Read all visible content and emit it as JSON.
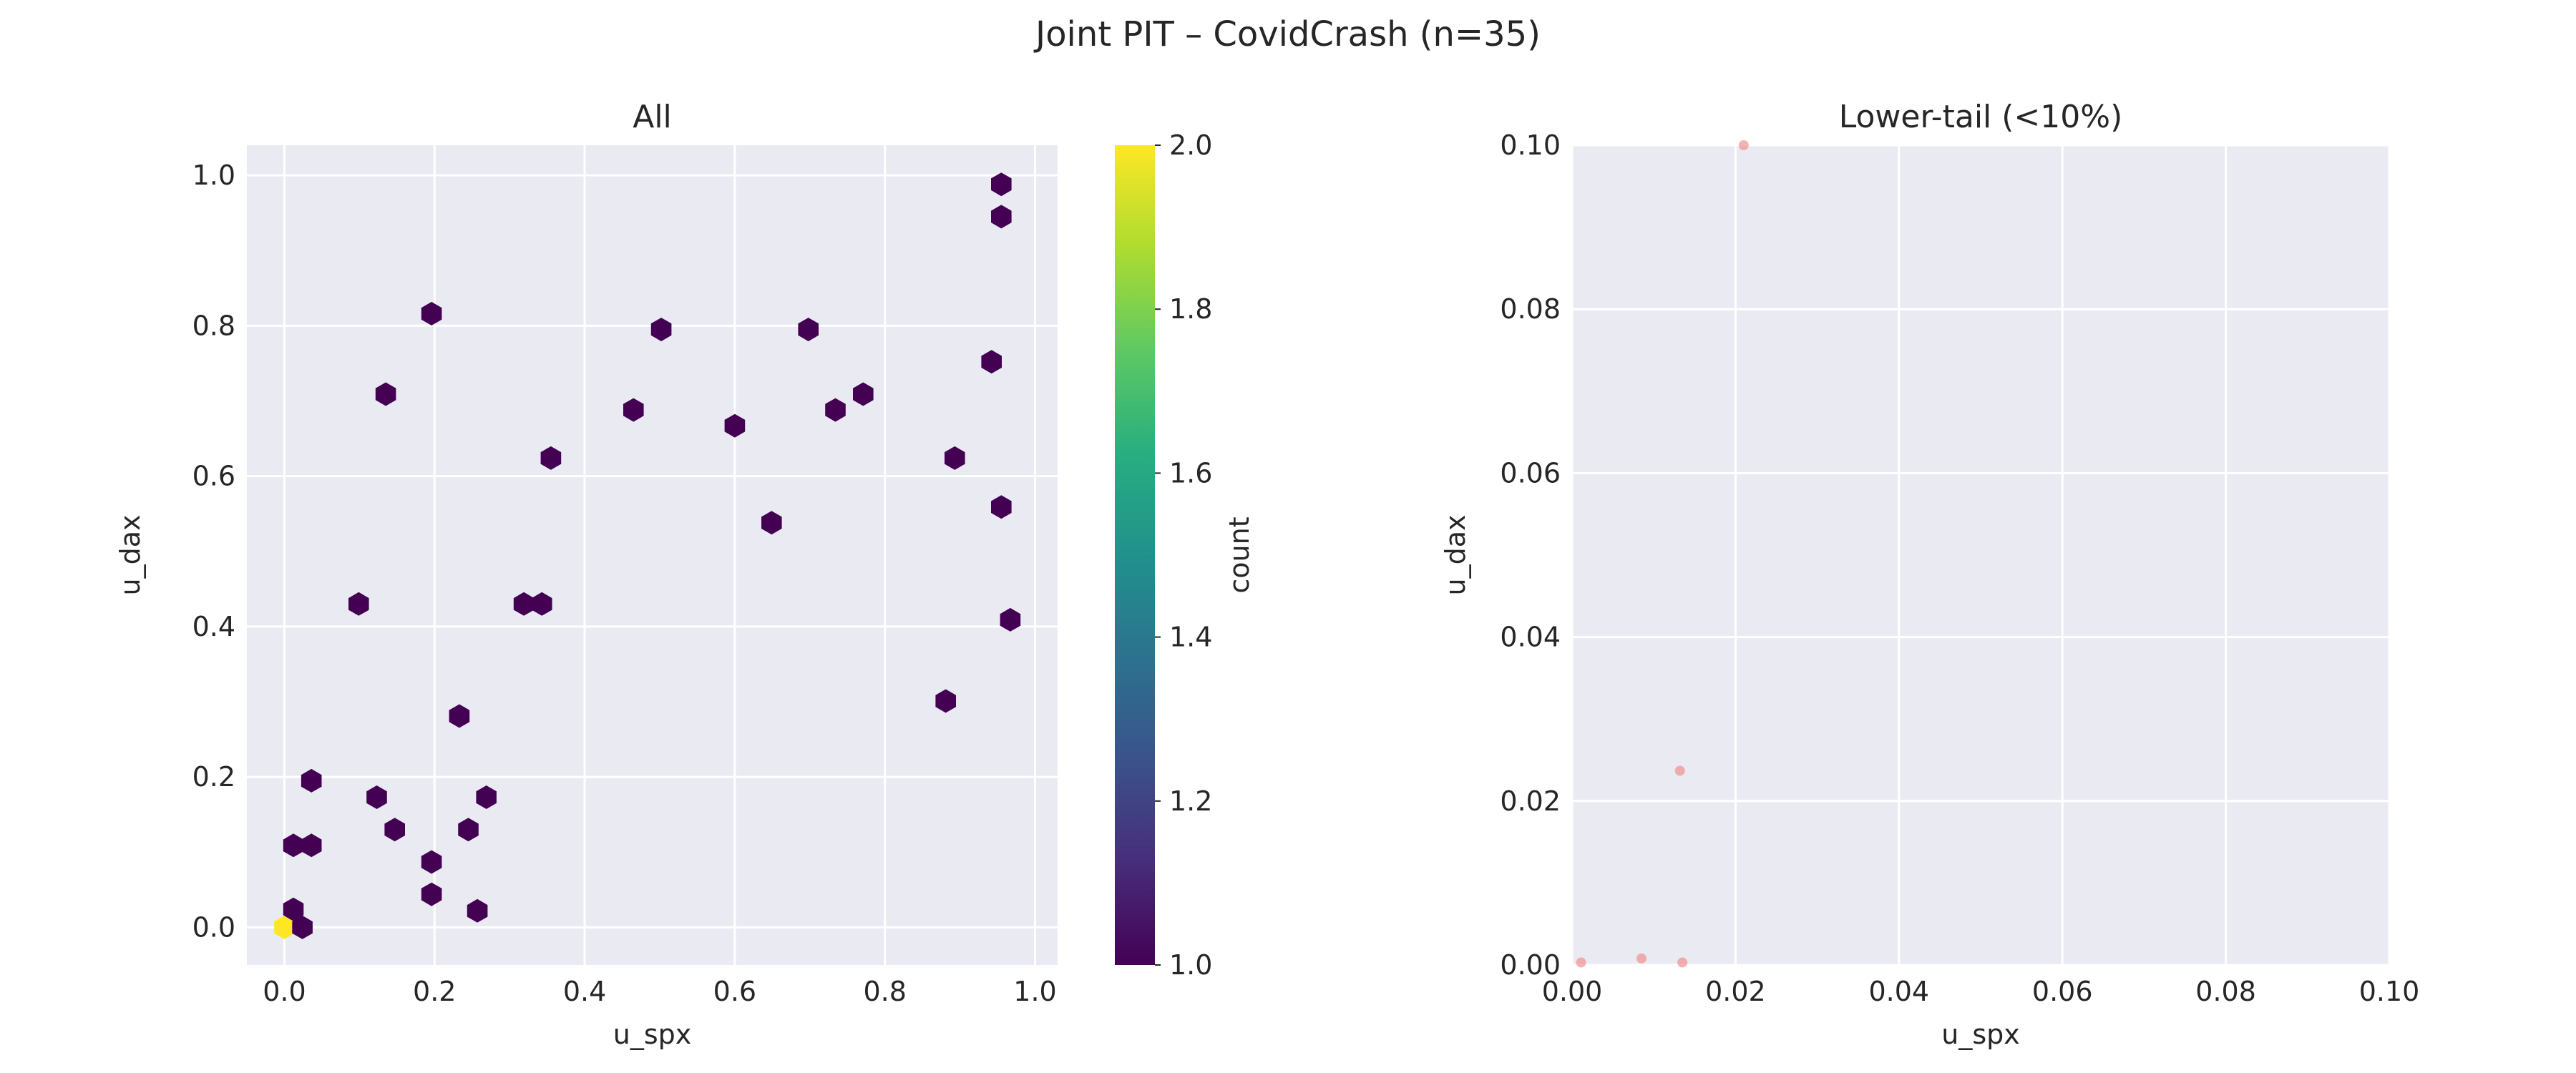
{
  "figure": {
    "title": "Joint PIT – CovidCrash (n=35)"
  },
  "colors": {
    "axes_bg": "#eaeaf2",
    "grid": "#ffffff",
    "text": "#262626",
    "hex_low": "#440154",
    "hex_high": "#fde725",
    "tail_point": "#f08080"
  },
  "chart_data": [
    {
      "type": "hexbin",
      "title": "All",
      "xlabel": "u_spx",
      "ylabel": "u_dax",
      "xlim": [
        -0.05,
        1.03
      ],
      "ylim": [
        -0.05,
        1.04
      ],
      "xticks": [
        "0.0",
        "0.2",
        "0.4",
        "0.6",
        "0.8",
        "1.0"
      ],
      "yticks": [
        "0.0",
        "0.2",
        "0.4",
        "0.6",
        "0.8",
        "1.0"
      ],
      "grid": true,
      "colorbar": {
        "label": "count",
        "range": [
          1.0,
          2.0
        ],
        "ticks": [
          "1.0",
          "1.2",
          "1.4",
          "1.6",
          "1.8",
          "2.0"
        ],
        "colormap": "viridis"
      },
      "bins": [
        {
          "x": 0.0,
          "y": 0.0,
          "count": 2
        },
        {
          "x": 0.024,
          "y": 0.0,
          "count": 1
        },
        {
          "x": 0.012,
          "y": 0.024,
          "count": 1
        },
        {
          "x": 0.012,
          "y": 0.109,
          "count": 1
        },
        {
          "x": 0.036,
          "y": 0.109,
          "count": 1
        },
        {
          "x": 0.036,
          "y": 0.195,
          "count": 1
        },
        {
          "x": 0.099,
          "y": 0.43,
          "count": 1
        },
        {
          "x": 0.123,
          "y": 0.173,
          "count": 1
        },
        {
          "x": 0.135,
          "y": 0.709,
          "count": 1
        },
        {
          "x": 0.147,
          "y": 0.13,
          "count": 1
        },
        {
          "x": 0.196,
          "y": 0.816,
          "count": 1
        },
        {
          "x": 0.196,
          "y": 0.087,
          "count": 1
        },
        {
          "x": 0.196,
          "y": 0.044,
          "count": 1
        },
        {
          "x": 0.233,
          "y": 0.281,
          "count": 1
        },
        {
          "x": 0.245,
          "y": 0.13,
          "count": 1
        },
        {
          "x": 0.257,
          "y": 0.022,
          "count": 1
        },
        {
          "x": 0.269,
          "y": 0.173,
          "count": 1
        },
        {
          "x": 0.319,
          "y": 0.43,
          "count": 1
        },
        {
          "x": 0.343,
          "y": 0.43,
          "count": 1
        },
        {
          "x": 0.355,
          "y": 0.624,
          "count": 1
        },
        {
          "x": 0.465,
          "y": 0.688,
          "count": 1
        },
        {
          "x": 0.502,
          "y": 0.795,
          "count": 1
        },
        {
          "x": 0.6,
          "y": 0.667,
          "count": 1
        },
        {
          "x": 0.649,
          "y": 0.538,
          "count": 1
        },
        {
          "x": 0.698,
          "y": 0.795,
          "count": 1
        },
        {
          "x": 0.734,
          "y": 0.688,
          "count": 1
        },
        {
          "x": 0.771,
          "y": 0.709,
          "count": 1
        },
        {
          "x": 0.881,
          "y": 0.301,
          "count": 1
        },
        {
          "x": 0.893,
          "y": 0.624,
          "count": 1
        },
        {
          "x": 0.942,
          "y": 0.752,
          "count": 1
        },
        {
          "x": 0.955,
          "y": 0.988,
          "count": 1
        },
        {
          "x": 0.955,
          "y": 0.945,
          "count": 1
        },
        {
          "x": 0.955,
          "y": 0.559,
          "count": 1
        },
        {
          "x": 0.967,
          "y": 0.409,
          "count": 1
        }
      ]
    },
    {
      "type": "scatter",
      "title": "Lower-tail (<10%)",
      "xlabel": "u_spx",
      "ylabel": "u_dax",
      "xlim": [
        0.0,
        0.1
      ],
      "ylim": [
        0.0,
        0.1
      ],
      "xticks": [
        "0.00",
        "0.02",
        "0.04",
        "0.06",
        "0.08",
        "0.10"
      ],
      "yticks": [
        "0.00",
        "0.02",
        "0.04",
        "0.06",
        "0.08",
        "0.10"
      ],
      "grid": true,
      "points": [
        {
          "x": 0.0011,
          "y": 0.0003
        },
        {
          "x": 0.0085,
          "y": 0.0008
        },
        {
          "x": 0.0135,
          "y": 0.0003
        },
        {
          "x": 0.0132,
          "y": 0.0237
        },
        {
          "x": 0.021,
          "y": 0.1
        }
      ]
    }
  ]
}
